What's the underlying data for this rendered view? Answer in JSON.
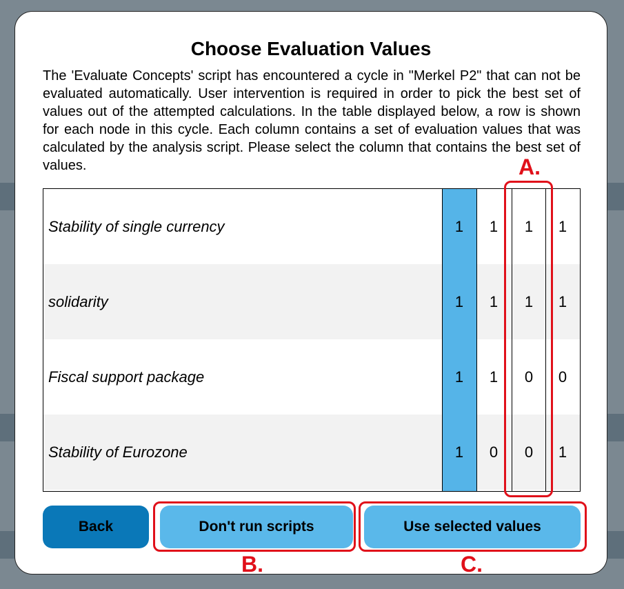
{
  "dialog": {
    "title": "Choose Evaluation Values",
    "description": "The 'Evaluate Concepts' script has encountered a cycle in \"Merkel P2\" that can not be evaluated automatically. User intervention is required in order to pick the best set of values out of the attempted calculations. In the table displayed below, a row is shown for each node in this cycle. Each column contains a set of evaluation values that was calculated by the analysis script. Please select the column that contains the best set of values."
  },
  "table": {
    "selected_column": 0,
    "rows": [
      {
        "name": "Stability of single currency",
        "values": [
          "1",
          "1",
          "1",
          "1"
        ]
      },
      {
        "name": "solidarity",
        "values": [
          "1",
          "1",
          "1",
          "1"
        ]
      },
      {
        "name": "Fiscal support package",
        "values": [
          "1",
          "1",
          "0",
          "0"
        ]
      },
      {
        "name": "Stability of Eurozone",
        "values": [
          "1",
          "0",
          "0",
          "1"
        ]
      }
    ]
  },
  "buttons": {
    "back": "Back",
    "dont_run": "Don't run scripts",
    "use_selected": "Use selected values"
  },
  "annotations": {
    "a": "A.",
    "b": "B.",
    "c": "C.",
    "color": "#e0101a"
  },
  "colors": {
    "selected_column": "#55b4e8",
    "primary_button": "#0a78b8",
    "secondary_button": "#5ab8ea"
  }
}
